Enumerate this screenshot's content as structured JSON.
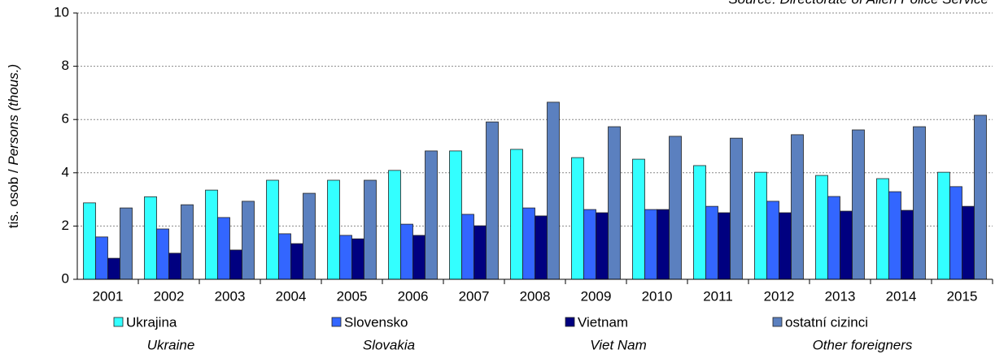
{
  "chart_data": {
    "type": "bar",
    "source": "Source: Directorate of Alien Police Service",
    "ylabel": {
      "cz": "tis. osob /",
      "en": "Persons (thous.)"
    },
    "categories": [
      "2001",
      "2002",
      "2003",
      "2004",
      "2005",
      "2006",
      "2007",
      "2008",
      "2009",
      "2010",
      "2011",
      "2012",
      "2013",
      "2014",
      "2015"
    ],
    "series": [
      {
        "name": "Ukrajina",
        "name_en": "Ukraine",
        "color": "#33ffff",
        "values": [
          2.87,
          3.1,
          3.35,
          3.72,
          3.72,
          4.09,
          4.82,
          4.88,
          4.57,
          4.51,
          4.27,
          4.02,
          3.9,
          3.78,
          4.02
        ]
      },
      {
        "name": "Slovensko",
        "name_en": "Slovakia",
        "color": "#3366ff",
        "values": [
          1.59,
          1.89,
          2.32,
          1.71,
          1.65,
          2.07,
          2.44,
          2.68,
          2.62,
          2.62,
          2.74,
          2.93,
          3.11,
          3.29,
          3.48
        ]
      },
      {
        "name": "Vietnam",
        "name_en": "Viet Nam",
        "color": "#000080",
        "values": [
          0.79,
          0.98,
          1.1,
          1.34,
          1.52,
          1.65,
          2.01,
          2.38,
          2.5,
          2.62,
          2.5,
          2.5,
          2.56,
          2.59,
          2.74
        ]
      },
      {
        "name": "ostatní cizinci",
        "name_en": "Other foreigners",
        "color": "#5b80bf",
        "values": [
          2.68,
          2.8,
          2.93,
          3.23,
          3.72,
          4.82,
          5.91,
          6.65,
          5.73,
          5.37,
          5.3,
          5.43,
          5.61,
          5.73,
          6.16
        ]
      }
    ],
    "ylim": [
      0,
      10
    ],
    "yticks": [
      0,
      2,
      4,
      6,
      8,
      10
    ],
    "grid": true
  }
}
